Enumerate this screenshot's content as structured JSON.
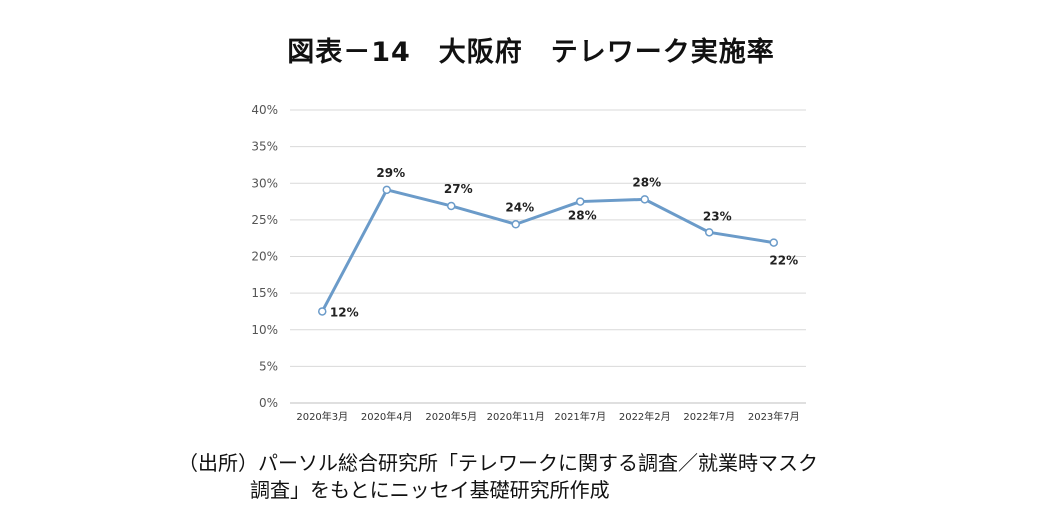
{
  "page": {
    "title": "図表－14　大阪府　テレワーク実施率",
    "source_line1": "（出所）パーソル総合研究所「テレワークに関する調査／就業時マスク",
    "source_line2": "調査」をもとにニッセイ基礎研究所作成"
  },
  "chart_data": {
    "type": "line",
    "title": "図表－14　大阪府　テレワーク実施率",
    "xlabel": "",
    "ylabel": "",
    "categories": [
      "2020年3月",
      "2020年4月",
      "2020年5月",
      "2020年11月",
      "2021年7月",
      "2022年2月",
      "2022年7月",
      "2023年7月"
    ],
    "series": [
      {
        "name": "テレワーク実施率",
        "values": [
          12.5,
          29.1,
          26.9,
          24.4,
          27.5,
          27.8,
          23.3,
          21.9
        ],
        "labels": [
          "12%",
          "29%",
          "27%",
          "24%",
          "28%",
          "28%",
          "23%",
          "22%"
        ],
        "color": "#6b9bc9"
      }
    ],
    "ylim": [
      0,
      40
    ],
    "yticks": [
      0,
      5,
      10,
      15,
      20,
      25,
      30,
      35,
      40
    ],
    "ytick_labels": [
      "0%",
      "5%",
      "10%",
      "15%",
      "20%",
      "25%",
      "30%",
      "35%",
      "40%"
    ],
    "grid": true,
    "legend": "none"
  }
}
